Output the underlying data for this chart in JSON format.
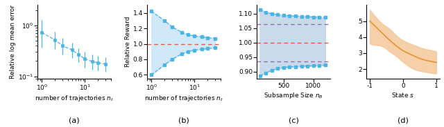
{
  "panel_a": {
    "x": [
      1,
      2,
      3,
      5,
      7,
      10,
      15,
      20,
      30
    ],
    "y": [
      0.72,
      0.52,
      0.4,
      0.33,
      0.27,
      0.22,
      0.195,
      0.185,
      0.175
    ],
    "yerr_lo": [
      0.35,
      0.18,
      0.13,
      0.1,
      0.08,
      0.07,
      0.06,
      0.055,
      0.05
    ],
    "yerr_hi": [
      0.55,
      0.22,
      0.17,
      0.12,
      0.09,
      0.08,
      0.07,
      0.065,
      0.06
    ],
    "xlabel": "number of trajectories $n_t$",
    "ylabel": "Relative log mean error",
    "label": "(a)",
    "xlim": [
      0.8,
      40
    ],
    "ylim": [
      0.09,
      2.5
    ],
    "color": "#4ab4e6"
  },
  "panel_b": {
    "x": [
      1,
      2,
      3,
      5,
      7,
      10,
      15,
      20,
      30
    ],
    "y_upper": [
      1.42,
      1.3,
      1.22,
      1.15,
      1.12,
      1.1,
      1.09,
      1.08,
      1.07
    ],
    "y_lower": [
      0.6,
      0.73,
      0.8,
      0.87,
      0.9,
      0.92,
      0.93,
      0.94,
      0.95
    ],
    "xlabel": "number of trajectories $n_t$",
    "ylabel": "Relative Reward",
    "label": "(b)",
    "xlim": [
      0.8,
      40
    ],
    "ylim": [
      0.55,
      1.5
    ],
    "color": "#4ab4e6",
    "fill_color": "#c8e6f7",
    "hline": 1.0,
    "hline_color": "#e05c44"
  },
  "panel_c": {
    "x": [
      100,
      200,
      300,
      400,
      500,
      600,
      700,
      800,
      900,
      1000,
      1100,
      1200
    ],
    "y_upper": [
      1.115,
      1.105,
      1.1,
      1.097,
      1.094,
      1.093,
      1.092,
      1.091,
      1.09,
      1.089,
      1.088,
      1.087
    ],
    "y_lower": [
      0.885,
      0.895,
      0.905,
      0.91,
      0.914,
      0.916,
      0.917,
      0.918,
      0.919,
      0.92,
      0.921,
      0.922
    ],
    "hline1": 1.0,
    "hline2_upper": 1.065,
    "hline2_lower": 0.935,
    "xlabel": "Subsample Size $n_B$",
    "ylabel": "",
    "label": "(c)",
    "xlim": [
      50,
      1280
    ],
    "ylim": [
      0.875,
      1.13
    ],
    "color": "#4ab4e6",
    "fill_color": "#c0d4e8",
    "hline_color": "#e05c44",
    "hline2_color": "#9370ab"
  },
  "panel_d": {
    "x": [
      -1.0,
      -0.8,
      -0.6,
      -0.4,
      -0.2,
      0.0,
      0.2,
      0.4,
      0.6,
      0.8,
      1.0
    ],
    "y": [
      5.0,
      4.6,
      4.2,
      3.8,
      3.45,
      3.15,
      2.95,
      2.75,
      2.6,
      2.5,
      2.42
    ],
    "y_upper": [
      5.7,
      5.2,
      4.8,
      4.5,
      4.1,
      3.8,
      3.6,
      3.45,
      3.3,
      3.2,
      3.1
    ],
    "y_lower": [
      3.6,
      3.5,
      3.4,
      3.1,
      2.8,
      2.45,
      2.15,
      1.95,
      1.85,
      1.78,
      1.72
    ],
    "xlabel": "State $s$",
    "ylabel": "",
    "label": "(d)",
    "xlim": [
      -1.1,
      1.1
    ],
    "ylim": [
      1.4,
      6.0
    ],
    "line_color": "#e8963a",
    "fill_color": "#f5c89a"
  }
}
